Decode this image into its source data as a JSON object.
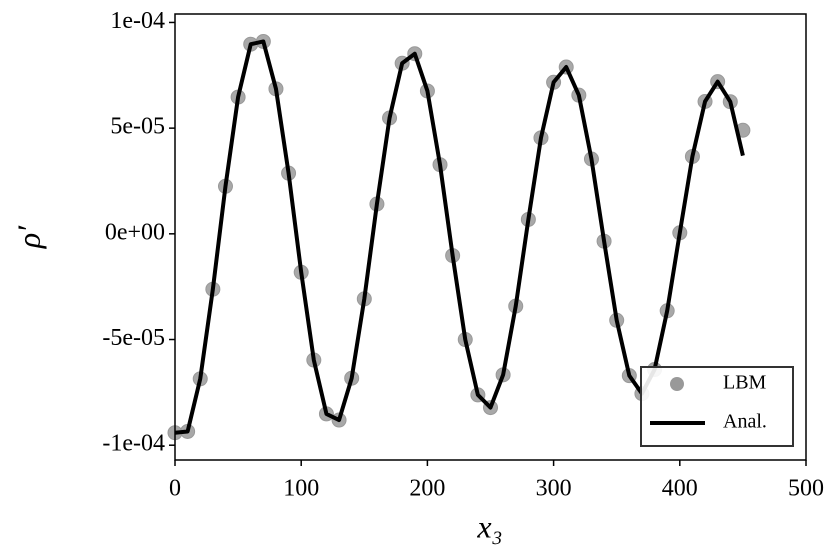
{
  "chart_data": {
    "type": "line",
    "xlabel": "x₃",
    "ylabel": "ρ′",
    "xlim": [
      0,
      500
    ],
    "ylim": [
      -0.000107,
      0.000104
    ],
    "xticks": [
      0,
      100,
      200,
      300,
      400,
      500
    ],
    "yticks": [
      {
        "value": -0.0001,
        "label": "-1e-04"
      },
      {
        "value": -5e-05,
        "label": "-5e-05"
      },
      {
        "value": 0,
        "label": "0e+00"
      },
      {
        "value": 5e-05,
        "label": "5e-05"
      },
      {
        "value": 0.0001,
        "label": "1e-04"
      }
    ],
    "legend": "lower right",
    "series": [
      {
        "name": "LBM",
        "style": "scatter",
        "color": "#999999",
        "x": [
          0,
          10,
          20,
          30,
          40,
          50,
          60,
          70,
          80,
          90,
          100,
          110,
          120,
          130,
          140,
          150,
          160,
          170,
          180,
          190,
          200,
          210,
          220,
          230,
          240,
          250,
          260,
          270,
          280,
          290,
          300,
          310,
          320,
          330,
          340,
          350,
          360,
          370,
          380,
          390,
          400,
          410,
          420,
          430,
          440,
          450
        ],
        "values": [
          -9.41e-05,
          -9.35e-05,
          -6.86e-05,
          -2.62e-05,
          2.25e-05,
          6.47e-05,
          8.97e-05,
          9.1e-05,
          6.86e-05,
          2.87e-05,
          -1.82e-05,
          -5.97e-05,
          -8.52e-05,
          -8.81e-05,
          -6.83e-05,
          -3.08e-05,
          1.41e-05,
          5.48e-05,
          8.07e-05,
          8.52e-05,
          6.76e-05,
          3.27e-05,
          -1.03e-05,
          -5e-05,
          -7.62e-05,
          -8.22e-05,
          -6.67e-05,
          -3.42e-05,
          6.8e-06,
          4.54e-05,
          7.17e-05,
          7.89e-05,
          6.56e-05,
          3.54e-05,
          -3.5e-06,
          -4.09e-05,
          -6.71e-05,
          -7.56e-05,
          -6.42e-05,
          -3.64e-05,
          5e-07,
          3.66e-05,
          6.26e-05,
          7.2e-05,
          6.25e-05,
          4.9e-05
        ]
      },
      {
        "name": "Anal.",
        "style": "line",
        "color": "#000000",
        "x": [
          0,
          10,
          20,
          30,
          40,
          50,
          60,
          70,
          80,
          90,
          100,
          110,
          120,
          130,
          140,
          150,
          160,
          170,
          180,
          190,
          200,
          210,
          220,
          230,
          240,
          250,
          260,
          270,
          280,
          290,
          300,
          310,
          320,
          330,
          340,
          350,
          360,
          370,
          380,
          390,
          400,
          410,
          420,
          430,
          440,
          450
        ],
        "values": [
          -9.41e-05,
          -9.35e-05,
          -6.86e-05,
          -2.62e-05,
          2.25e-05,
          6.47e-05,
          8.97e-05,
          9.1e-05,
          6.86e-05,
          2.87e-05,
          -1.82e-05,
          -5.97e-05,
          -8.52e-05,
          -8.81e-05,
          -6.83e-05,
          -3.08e-05,
          1.41e-05,
          5.48e-05,
          8.07e-05,
          8.52e-05,
          6.76e-05,
          3.27e-05,
          -1.03e-05,
          -5e-05,
          -7.62e-05,
          -8.22e-05,
          -6.67e-05,
          -3.42e-05,
          6.8e-06,
          4.54e-05,
          7.17e-05,
          7.89e-05,
          6.56e-05,
          3.54e-05,
          -3.5e-06,
          -4.09e-05,
          -6.71e-05,
          -7.56e-05,
          -6.42e-05,
          -3.64e-05,
          5e-07,
          3.66e-05,
          6.26e-05,
          7.2e-05,
          6.25e-05,
          3.7e-05
        ]
      }
    ]
  }
}
